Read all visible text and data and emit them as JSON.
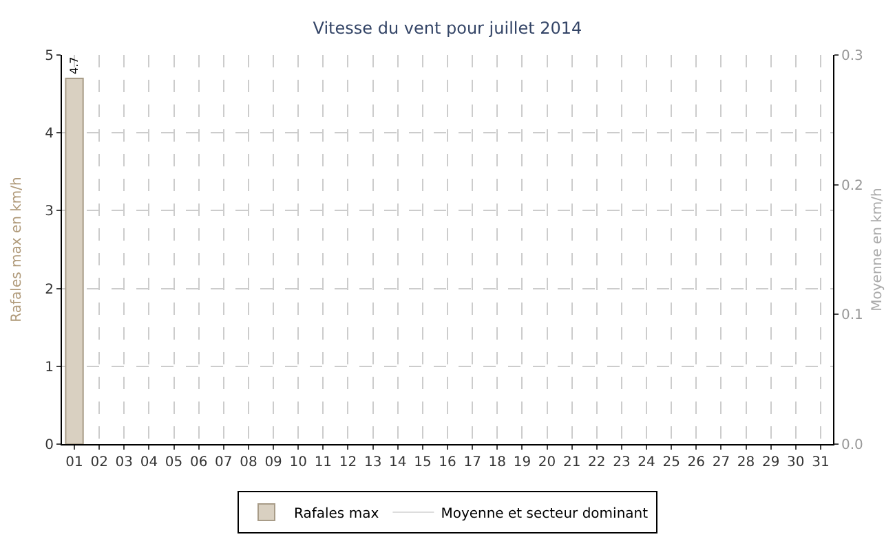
{
  "chart_data": {
    "type": "bar",
    "title": "Vitesse du vent pour juillet 2014",
    "ylabel": "Rafales max en km/h",
    "y2label": "Moyenne en km/h",
    "categories": [
      "01",
      "02",
      "03",
      "04",
      "05",
      "06",
      "07",
      "08",
      "09",
      "10",
      "11",
      "12",
      "13",
      "14",
      "15",
      "16",
      "17",
      "18",
      "19",
      "20",
      "21",
      "22",
      "23",
      "24",
      "25",
      "26",
      "27",
      "28",
      "29",
      "30",
      "31"
    ],
    "series": [
      {
        "name": "Rafales max",
        "color": "#d9d0c1",
        "values": [
          4.7,
          null,
          null,
          null,
          null,
          null,
          null,
          null,
          null,
          null,
          null,
          null,
          null,
          null,
          null,
          null,
          null,
          null,
          null,
          null,
          null,
          null,
          null,
          null,
          null,
          null,
          null,
          null,
          null,
          null,
          null
        ]
      },
      {
        "name": "Moyenne et secteur dominant",
        "type": "line",
        "axis": "y2",
        "color": "#dddddd",
        "values": [
          null,
          null,
          null,
          null,
          null,
          null,
          null,
          null,
          null,
          null,
          null,
          null,
          null,
          null,
          null,
          null,
          null,
          null,
          null,
          null,
          null,
          null,
          null,
          null,
          null,
          null,
          null,
          null,
          null,
          null,
          null
        ]
      }
    ],
    "ylim": [
      0,
      5
    ],
    "yticks": [
      0,
      1,
      2,
      3,
      4,
      5
    ],
    "y2lim": [
      0,
      0.3
    ],
    "y2ticks": [
      {
        "value": 0,
        "label": "0.0"
      },
      0.1,
      0.2,
      0.3
    ],
    "data_labels": true,
    "grid": true,
    "legend": "bottom"
  }
}
